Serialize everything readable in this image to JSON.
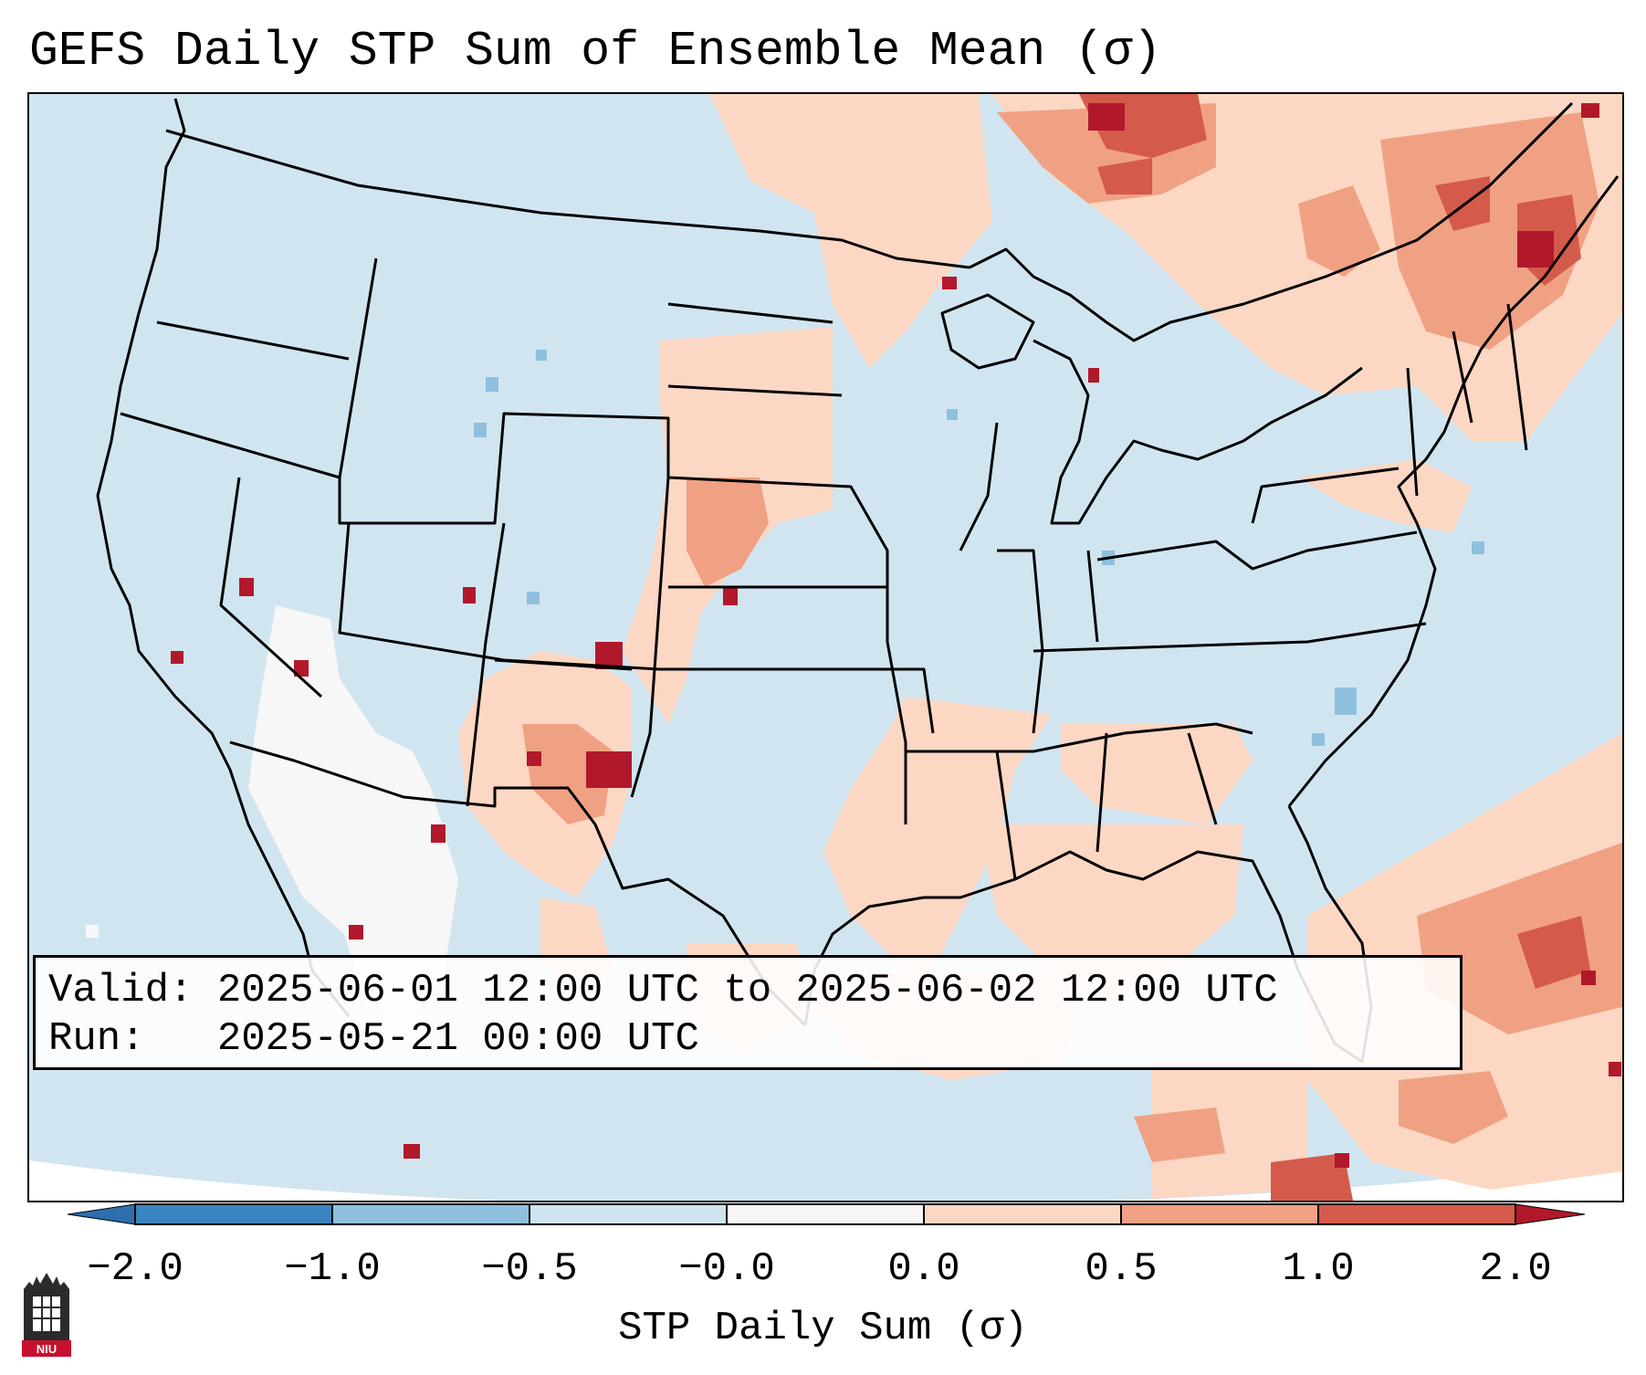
{
  "title": "GEFS Daily STP Sum of Ensemble Mean (σ)",
  "info": {
    "valid_label": "Valid:",
    "valid_value": "2025-06-01 12:00 UTC to 2025-06-02 12:00 UTC",
    "run_label": "Run:",
    "run_value": "2025-05-21 00:00 UTC"
  },
  "colorbar": {
    "label": "STP Daily Sum (σ)",
    "ticks": [
      "−2.0",
      "−1.0",
      "−0.5",
      "−0.0",
      "0.0",
      "0.5",
      "1.0",
      "2.0"
    ],
    "colors": [
      "#3a84bf",
      "#8ec0de",
      "#d0e4ef",
      "#f7f7f7",
      "#fcd7c3",
      "#f0a183",
      "#d45a4b"
    ],
    "under_color": "#2c6fae",
    "over_color": "#b2182b"
  },
  "logo": {
    "text": "NIU",
    "icon": "niu-logo-icon",
    "color": "#c8102e"
  },
  "map": {
    "background_color": "#d1e5f0",
    "icons": [
      "us-state-boundaries-icon",
      "coastline-icon"
    ]
  }
}
